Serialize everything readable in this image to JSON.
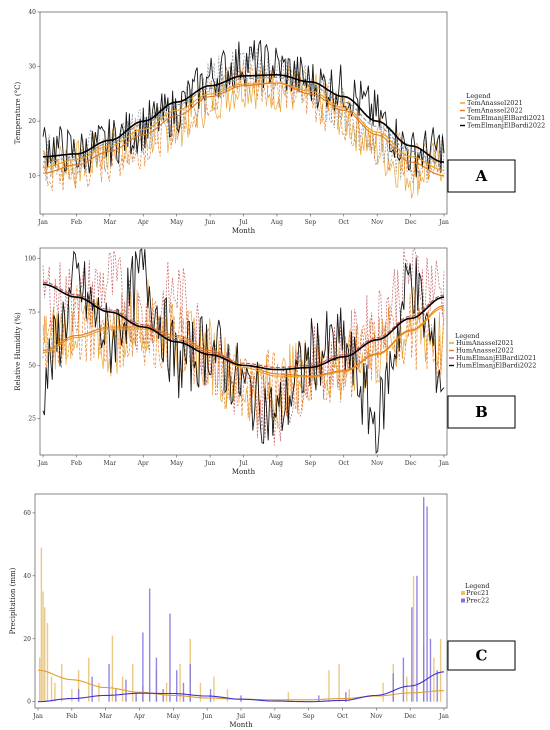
{
  "chart_data": [
    {
      "type": "line",
      "panel_label": "A",
      "xlabel": "Month",
      "ylabel": "Temperature (°C)",
      "x_ticks": [
        "Jan",
        "Feb",
        "Mar",
        "Apr",
        "May",
        "Jun",
        "Jul",
        "Aug",
        "Sep",
        "Oct",
        "Nov",
        "Dec",
        "Jan"
      ],
      "y_ticks": [
        10,
        20,
        30,
        40
      ],
      "ylim": [
        3,
        40
      ],
      "legend_title": "Legend",
      "legend_position": "right",
      "series": [
        {
          "name": "TemAnassel2021",
          "color": "#e8a020",
          "values": [
            14,
            12,
            15,
            17,
            19,
            24,
            27,
            26,
            25,
            21,
            15,
            10,
            13
          ],
          "trend": [
            11.5,
            13,
            15.5,
            18.5,
            22,
            25,
            26.8,
            27,
            25.5,
            22.5,
            18,
            13.5,
            11
          ]
        },
        {
          "name": "TemAnassel2022",
          "color": "#e87820",
          "values": [
            10,
            11,
            13,
            16,
            20,
            25,
            28,
            27,
            24,
            21,
            17,
            12,
            12
          ],
          "trend": [
            10.5,
            12,
            14.5,
            17.5,
            21,
            24.5,
            26.5,
            27,
            25,
            22,
            17.5,
            12.5,
            10
          ]
        },
        {
          "name": "TemElmanjElBardi2021",
          "color": "#8090a0",
          "values": [
            13,
            14,
            15,
            18,
            21,
            27,
            30,
            29,
            26,
            22,
            16,
            12,
            14
          ],
          "trend": [
            12.5,
            13.5,
            16,
            19.5,
            23,
            26,
            27.8,
            28,
            26.5,
            23.5,
            19,
            14.5,
            12
          ]
        },
        {
          "name": "TemElmanjElBardi2022",
          "color": "#000000",
          "values": [
            16,
            14,
            16,
            19,
            22,
            28,
            31,
            30,
            27,
            26,
            21,
            14,
            15
          ],
          "trend": [
            13.5,
            14,
            16.5,
            20,
            23.5,
            26.5,
            28.3,
            28.5,
            27.2,
            24.5,
            20,
            15.5,
            12.5
          ]
        }
      ]
    },
    {
      "type": "line",
      "panel_label": "B",
      "xlabel": "Month",
      "ylabel": "Relative Humidity (%)",
      "x_ticks": [
        "Jan",
        "Feb",
        "Mar",
        "Apr",
        "May",
        "Jun",
        "Jul",
        "Aug",
        "Sep",
        "Oct",
        "Nov",
        "Dec",
        "Jan"
      ],
      "y_ticks": [
        25,
        50,
        75,
        100
      ],
      "ylim": [
        8,
        105
      ],
      "legend_title": "Legend",
      "legend_position": "right",
      "series": [
        {
          "name": "HumAnassel2021",
          "color": "#e8a020",
          "values": [
            58,
            72,
            60,
            75,
            60,
            55,
            40,
            38,
            50,
            48,
            55,
            70,
            60
          ],
          "trend": [
            56,
            63,
            67,
            67,
            63,
            56,
            49,
            45,
            44.5,
            47,
            55,
            66,
            77
          ]
        },
        {
          "name": "HumAnassel2022",
          "color": "#e87820",
          "values": [
            55,
            70,
            65,
            68,
            62,
            52,
            42,
            40,
            48,
            50,
            58,
            68,
            55
          ],
          "trend": [
            57,
            64,
            68,
            68,
            64,
            57,
            50,
            46,
            45,
            47.5,
            55.5,
            66.5,
            78
          ]
        },
        {
          "name": "HumElmanjElBardi2021",
          "color": "#c05050",
          "values": [
            85,
            80,
            90,
            70,
            85,
            55,
            35,
            30,
            50,
            55,
            70,
            95,
            85
          ],
          "trend": [
            89,
            83,
            76,
            69,
            62,
            56,
            51,
            49,
            50,
            55,
            63,
            73,
            83
          ]
        },
        {
          "name": "HumElmanjElBardi2022",
          "color": "#000000",
          "values": [
            40,
            90,
            60,
            95,
            50,
            60,
            40,
            25,
            55,
            60,
            20,
            95,
            40
          ],
          "trend": [
            88,
            82,
            75,
            68,
            61,
            55,
            50,
            48,
            49,
            54,
            62,
            72,
            82
          ]
        }
      ]
    },
    {
      "type": "bar",
      "panel_label": "C",
      "xlabel": "Month",
      "ylabel": "Precipitation (mm)",
      "x_ticks": [
        "Jan",
        "Feb",
        "Mar",
        "Apr",
        "May",
        "Jun",
        "Jul",
        "Aug",
        "Sep",
        "Oct",
        "Nov",
        "Dec",
        "Jan"
      ],
      "y_ticks": [
        0,
        20,
        40,
        60
      ],
      "ylim": [
        -2,
        66
      ],
      "legend_title": "Legend",
      "legend_position": "right",
      "series": [
        {
          "name": "Prec21",
          "color": "#e8c070",
          "events": [
            [
              0.05,
              14
            ],
            [
              0.1,
              49
            ],
            [
              0.15,
              35
            ],
            [
              0.2,
              30
            ],
            [
              0.28,
              25
            ],
            [
              0.4,
              8
            ],
            [
              0.5,
              6
            ],
            [
              0.7,
              12
            ],
            [
              1.0,
              4
            ],
            [
              1.2,
              10
            ],
            [
              1.5,
              14
            ],
            [
              1.8,
              6
            ],
            [
              2.2,
              21
            ],
            [
              2.5,
              8
            ],
            [
              2.8,
              12
            ],
            [
              3.1,
              5
            ],
            [
              3.5,
              10
            ],
            [
              3.8,
              6
            ],
            [
              4.2,
              12
            ],
            [
              4.5,
              20
            ],
            [
              4.8,
              6
            ],
            [
              5.2,
              8
            ],
            [
              5.6,
              4
            ],
            [
              7.4,
              3
            ],
            [
              8.6,
              10
            ],
            [
              8.9,
              12
            ],
            [
              9.2,
              4
            ],
            [
              10.2,
              6
            ],
            [
              10.5,
              12
            ],
            [
              10.9,
              8
            ],
            [
              11.1,
              40
            ],
            [
              11.4,
              18
            ],
            [
              11.7,
              14
            ],
            [
              11.9,
              20
            ]
          ],
          "trend": [
            10,
            7,
            4.5,
            3,
            2,
            1.2,
            0.8,
            0.6,
            0.6,
            1.0,
            1.8,
            2.8,
            3.5
          ]
        },
        {
          "name": "Prec22",
          "color": "#8070e0",
          "events": [
            [
              1.2,
              4
            ],
            [
              1.6,
              8
            ],
            [
              2.1,
              12
            ],
            [
              2.3,
              4
            ],
            [
              2.6,
              7
            ],
            [
              2.9,
              3
            ],
            [
              3.1,
              22
            ],
            [
              3.3,
              36
            ],
            [
              3.5,
              14
            ],
            [
              3.7,
              4
            ],
            [
              3.9,
              28
            ],
            [
              4.1,
              10
            ],
            [
              4.3,
              6
            ],
            [
              4.5,
              12
            ],
            [
              5.1,
              4
            ],
            [
              6.0,
              2
            ],
            [
              8.3,
              2
            ],
            [
              9.1,
              3
            ],
            [
              10.5,
              9
            ],
            [
              10.8,
              14
            ],
            [
              11.05,
              30
            ],
            [
              11.2,
              40
            ],
            [
              11.4,
              65
            ],
            [
              11.5,
              62
            ],
            [
              11.6,
              20
            ],
            [
              11.8,
              10
            ]
          ],
          "trend": [
            0,
            1,
            2,
            2.7,
            2.6,
            1.8,
            0.8,
            0.2,
            0,
            0.4,
            2,
            5,
            9.5
          ]
        }
      ]
    }
  ]
}
